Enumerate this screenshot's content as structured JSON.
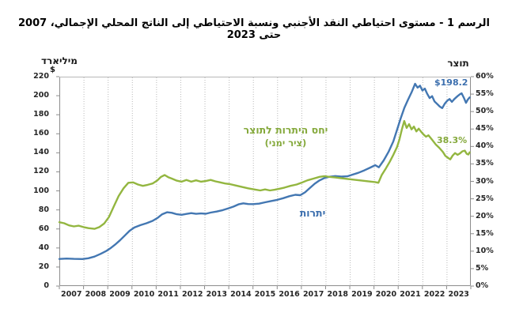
{
  "title": "الرسم 1 - مستوى احتياطي النقد الأجنبي ونسبة الاحتياطي إلى الناتج المحلي الإجمالي، 2007 حتى 2023",
  "left_axis": {
    "unit_label": "מיליארד",
    "currency_symbol": "$",
    "tick_labels": [
      "0",
      "20",
      "40",
      "60",
      "80",
      "100",
      "120",
      "140",
      "160",
      "180",
      "200",
      "220"
    ],
    "min": 0,
    "max": 220,
    "step": 20
  },
  "right_axis": {
    "title": "תוצר",
    "tick_labels": [
      "0%",
      "5%",
      "10%",
      "15%",
      "20%",
      "25%",
      "30%",
      "35%",
      "40%",
      "45%",
      "50%",
      "55%",
      "60%"
    ],
    "min": 0,
    "max": 60,
    "step": 5
  },
  "x_axis": {
    "year_labels": [
      "2007",
      "2008",
      "2009",
      "2010",
      "2011",
      "2012",
      "2013",
      "2014",
      "2015",
      "2016",
      "2017",
      "2018",
      "2019",
      "2020",
      "2021",
      "2022",
      "2023"
    ]
  },
  "annotations": {
    "ratio_label_line1": "יחס היתרות לתוצר",
    "ratio_label_line2": "(ציר ימני)",
    "reserves_label": "יתרות",
    "reserves_end_value": "$198.2",
    "ratio_end_value": "38.3%"
  },
  "colors": {
    "reserves_line": "#4377B2",
    "ratio_line": "#93B640",
    "reserves_text": "#3C6FAE",
    "ratio_text": "#85A93C",
    "grid": "#b8b8b8",
    "axis": "#8c8c8c",
    "text": "#262626"
  },
  "chart_data": {
    "type": "line",
    "title": "الرسم 1 - مستوى احتياطي النقد الأجنبي ونسبة الاحتياطي إلى الناتج المحلي الإجمالي، 2007 حتى 2023",
    "x_range": [
      2007,
      2024
    ],
    "x_tick_years": [
      2007,
      2008,
      2009,
      2010,
      2011,
      2012,
      2013,
      2014,
      2015,
      2016,
      2017,
      2018,
      2019,
      2020,
      2021,
      2022,
      2023
    ],
    "grid": "vertical-dotted",
    "legend_position": "inline-annotations",
    "series": [
      {
        "name": "יתרות",
        "axis": "left",
        "unit": "US$ billions",
        "ylim": [
          0,
          220
        ],
        "color": "#4377B2",
        "end_label": "$198.2",
        "points": [
          [
            2007.0,
            28.5
          ],
          [
            2007.3,
            28.9
          ],
          [
            2007.6,
            28.6
          ],
          [
            2007.95,
            28.4
          ],
          [
            2008.2,
            29.2
          ],
          [
            2008.45,
            31.0
          ],
          [
            2008.7,
            33.8
          ],
          [
            2008.95,
            37.0
          ],
          [
            2009.1,
            39.5
          ],
          [
            2009.3,
            43.5
          ],
          [
            2009.5,
            48.0
          ],
          [
            2009.7,
            53.0
          ],
          [
            2009.9,
            58.0
          ],
          [
            2010.1,
            61.5
          ],
          [
            2010.35,
            64.0
          ],
          [
            2010.6,
            66.0
          ],
          [
            2010.85,
            68.5
          ],
          [
            2011.05,
            71.5
          ],
          [
            2011.25,
            75.5
          ],
          [
            2011.45,
            77.5
          ],
          [
            2011.65,
            77.0
          ],
          [
            2011.85,
            75.5
          ],
          [
            2012.05,
            74.9
          ],
          [
            2012.25,
            75.8
          ],
          [
            2012.45,
            76.6
          ],
          [
            2012.65,
            75.9
          ],
          [
            2012.85,
            76.3
          ],
          [
            2013.05,
            76.0
          ],
          [
            2013.25,
            77.2
          ],
          [
            2013.5,
            78.3
          ],
          [
            2013.75,
            79.8
          ],
          [
            2014.0,
            81.8
          ],
          [
            2014.2,
            83.5
          ],
          [
            2014.4,
            85.8
          ],
          [
            2014.6,
            86.9
          ],
          [
            2014.8,
            86.2
          ],
          [
            2015.0,
            86.1
          ],
          [
            2015.25,
            86.6
          ],
          [
            2015.5,
            88.0
          ],
          [
            2015.75,
            89.3
          ],
          [
            2016.0,
            90.6
          ],
          [
            2016.25,
            92.3
          ],
          [
            2016.5,
            94.4
          ],
          [
            2016.75,
            95.9
          ],
          [
            2016.95,
            95.5
          ],
          [
            2017.15,
            98.5
          ],
          [
            2017.35,
            103.0
          ],
          [
            2017.55,
            107.5
          ],
          [
            2017.75,
            111.0
          ],
          [
            2017.95,
            113.5
          ],
          [
            2018.15,
            114.8
          ],
          [
            2018.4,
            115.6
          ],
          [
            2018.65,
            115.1
          ],
          [
            2018.9,
            115.3
          ],
          [
            2019.1,
            117.0
          ],
          [
            2019.35,
            119.0
          ],
          [
            2019.6,
            121.5
          ],
          [
            2019.85,
            124.5
          ],
          [
            2020.05,
            127.0
          ],
          [
            2020.2,
            124.8
          ],
          [
            2020.4,
            132.0
          ],
          [
            2020.6,
            141.0
          ],
          [
            2020.8,
            152.0
          ],
          [
            2020.95,
            164.0
          ],
          [
            2021.1,
            176.0
          ],
          [
            2021.25,
            187.0
          ],
          [
            2021.4,
            195.5
          ],
          [
            2021.55,
            203.5
          ],
          [
            2021.7,
            212.5
          ],
          [
            2021.8,
            208.5
          ],
          [
            2021.9,
            210.5
          ],
          [
            2022.0,
            205.5
          ],
          [
            2022.1,
            207.5
          ],
          [
            2022.2,
            202.0
          ],
          [
            2022.3,
            197.5
          ],
          [
            2022.4,
            199.5
          ],
          [
            2022.5,
            194.0
          ],
          [
            2022.62,
            191.0
          ],
          [
            2022.72,
            188.5
          ],
          [
            2022.82,
            187.0
          ],
          [
            2022.92,
            191.5
          ],
          [
            2023.02,
            194.5
          ],
          [
            2023.12,
            196.5
          ],
          [
            2023.22,
            193.5
          ],
          [
            2023.32,
            196.5
          ],
          [
            2023.45,
            199.5
          ],
          [
            2023.55,
            201.5
          ],
          [
            2023.62,
            202.5
          ],
          [
            2023.72,
            197.5
          ],
          [
            2023.8,
            192.5
          ],
          [
            2023.88,
            196.0
          ],
          [
            2023.95,
            198.2
          ]
        ]
      },
      {
        "name": "יחס היתרות לתוצר (ציר ימני)",
        "axis": "right",
        "unit": "% of GDP",
        "ylim": [
          0,
          60
        ],
        "color": "#93B640",
        "end_label": "38.3%",
        "points": [
          [
            2007.0,
            18.3
          ],
          [
            2007.2,
            18.0
          ],
          [
            2007.4,
            17.4
          ],
          [
            2007.6,
            17.1
          ],
          [
            2007.8,
            17.3
          ],
          [
            2008.0,
            16.9
          ],
          [
            2008.2,
            16.6
          ],
          [
            2008.45,
            16.4
          ],
          [
            2008.65,
            16.9
          ],
          [
            2008.85,
            17.9
          ],
          [
            2009.05,
            19.8
          ],
          [
            2009.25,
            22.8
          ],
          [
            2009.45,
            25.8
          ],
          [
            2009.65,
            28.0
          ],
          [
            2009.85,
            29.6
          ],
          [
            2010.05,
            29.7
          ],
          [
            2010.25,
            29.1
          ],
          [
            2010.45,
            28.7
          ],
          [
            2010.65,
            29.0
          ],
          [
            2010.85,
            29.4
          ],
          [
            2011.05,
            30.3
          ],
          [
            2011.2,
            31.3
          ],
          [
            2011.35,
            31.8
          ],
          [
            2011.5,
            31.2
          ],
          [
            2011.65,
            30.8
          ],
          [
            2011.85,
            30.2
          ],
          [
            2012.05,
            29.9
          ],
          [
            2012.25,
            30.4
          ],
          [
            2012.45,
            29.9
          ],
          [
            2012.65,
            30.3
          ],
          [
            2012.85,
            29.9
          ],
          [
            2013.05,
            30.1
          ],
          [
            2013.25,
            30.4
          ],
          [
            2013.45,
            30.0
          ],
          [
            2013.65,
            29.7
          ],
          [
            2013.85,
            29.4
          ],
          [
            2014.05,
            29.2
          ],
          [
            2014.3,
            28.8
          ],
          [
            2014.55,
            28.4
          ],
          [
            2014.8,
            28.0
          ],
          [
            2015.05,
            27.7
          ],
          [
            2015.3,
            27.4
          ],
          [
            2015.5,
            27.7
          ],
          [
            2015.7,
            27.4
          ],
          [
            2015.9,
            27.6
          ],
          [
            2016.1,
            27.9
          ],
          [
            2016.3,
            28.2
          ],
          [
            2016.55,
            28.7
          ],
          [
            2016.8,
            29.1
          ],
          [
            2017.0,
            29.6
          ],
          [
            2017.25,
            30.3
          ],
          [
            2017.5,
            30.8
          ],
          [
            2017.75,
            31.3
          ],
          [
            2017.95,
            31.5
          ],
          [
            2018.15,
            31.3
          ],
          [
            2018.4,
            31.1
          ],
          [
            2018.65,
            30.9
          ],
          [
            2018.9,
            30.7
          ],
          [
            2019.15,
            30.5
          ],
          [
            2019.4,
            30.3
          ],
          [
            2019.65,
            30.1
          ],
          [
            2019.9,
            29.9
          ],
          [
            2020.05,
            29.8
          ],
          [
            2020.18,
            29.6
          ],
          [
            2020.32,
            31.8
          ],
          [
            2020.5,
            33.8
          ],
          [
            2020.65,
            35.6
          ],
          [
            2020.8,
            37.6
          ],
          [
            2020.95,
            39.8
          ],
          [
            2021.05,
            42.0
          ],
          [
            2021.15,
            44.8
          ],
          [
            2021.25,
            47.3
          ],
          [
            2021.35,
            45.3
          ],
          [
            2021.45,
            46.4
          ],
          [
            2021.55,
            44.9
          ],
          [
            2021.65,
            45.7
          ],
          [
            2021.75,
            44.3
          ],
          [
            2021.85,
            45.1
          ],
          [
            2021.95,
            44.2
          ],
          [
            2022.05,
            43.4
          ],
          [
            2022.15,
            42.8
          ],
          [
            2022.25,
            43.2
          ],
          [
            2022.4,
            41.9
          ],
          [
            2022.55,
            40.6
          ],
          [
            2022.7,
            39.6
          ],
          [
            2022.85,
            38.4
          ],
          [
            2022.95,
            37.3
          ],
          [
            2023.05,
            36.8
          ],
          [
            2023.15,
            36.3
          ],
          [
            2023.25,
            37.4
          ],
          [
            2023.35,
            38.1
          ],
          [
            2023.45,
            37.6
          ],
          [
            2023.55,
            38.0
          ],
          [
            2023.65,
            38.6
          ],
          [
            2023.75,
            38.8
          ],
          [
            2023.83,
            37.9
          ],
          [
            2023.9,
            37.7
          ],
          [
            2023.95,
            38.3
          ]
        ]
      }
    ]
  }
}
